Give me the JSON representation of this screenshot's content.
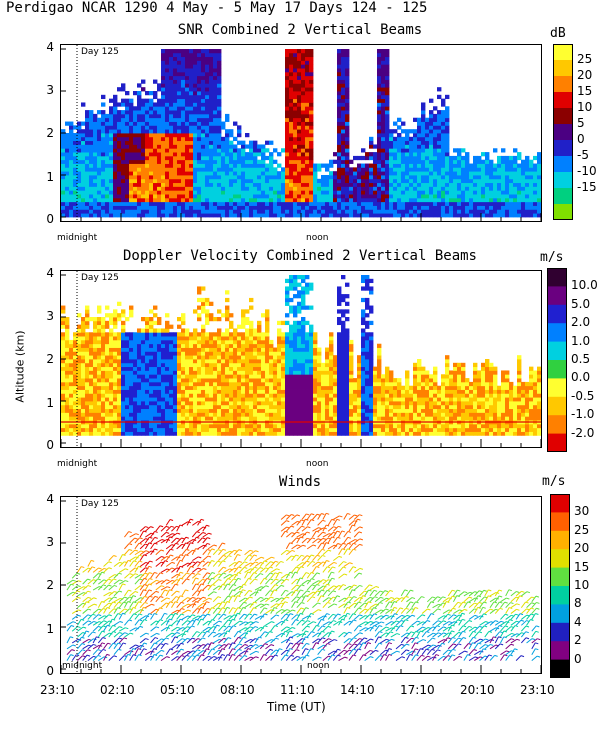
{
  "header": {
    "title": "Perdigao NCAR 1290   4 May -  5 May 17 Days 124 - 125"
  },
  "chart_data": [
    {
      "type": "heatmap",
      "title": "SNR Combined 2 Vertical Beams",
      "ylabel": "",
      "xlabel": "",
      "ylim": [
        0,
        4
      ],
      "y_ticks": [
        "0",
        "1",
        "2",
        "3",
        "4"
      ],
      "annotations": [
        "Day 125",
        "midnight",
        "noon"
      ],
      "colorbar": {
        "unit": "dB",
        "ticks": [
          "25",
          "20",
          "15",
          "10",
          "5",
          "0",
          "-5",
          "-10",
          "-15"
        ],
        "colors": [
          "#ffff30",
          "#ffc800",
          "#ff8000",
          "#e00000",
          "#8b0000",
          "#4b0082",
          "#2020c8",
          "#0080ff",
          "#00d0e0",
          "#00d080",
          "#80e000"
        ]
      }
    },
    {
      "type": "heatmap",
      "title": "Doppler Velocity Combined 2 Vertical Beams",
      "ylabel": "Altitude (km)",
      "xlabel": "",
      "ylim": [
        0,
        4
      ],
      "y_ticks": [
        "0",
        "1",
        "2",
        "3",
        "4"
      ],
      "annotations": [
        "Day 125",
        "midnight",
        "noon"
      ],
      "colorbar": {
        "unit": "m/s",
        "ticks": [
          "10.0",
          "5.0",
          "2.0",
          "1.0",
          "0.5",
          "0.0",
          "-0.5",
          "-1.0",
          "-2.0"
        ],
        "colors": [
          "#300030",
          "#6a0080",
          "#2020d0",
          "#0080ff",
          "#00d0e0",
          "#30d040",
          "#ffff30",
          "#ffc800",
          "#ff8000",
          "#e00000"
        ]
      }
    },
    {
      "type": "scatter",
      "title": "Winds",
      "ylabel": "",
      "xlabel": "Time (UT)",
      "ylim": [
        0,
        4
      ],
      "y_ticks": [
        "0",
        "1",
        "2",
        "3",
        "4"
      ],
      "x_ticks": [
        "23:10",
        "02:10",
        "05:10",
        "08:10",
        "11:10",
        "14:10",
        "17:10",
        "20:10",
        "23:10"
      ],
      "annotations": [
        "Day 125",
        "midnight",
        "noon"
      ],
      "colorbar": {
        "unit": "m/s",
        "ticks": [
          "30",
          "25",
          "20",
          "15",
          "10",
          "8",
          "4",
          "2",
          "0"
        ],
        "colors": [
          "#e00000",
          "#ff6000",
          "#ffb000",
          "#e0e000",
          "#60e040",
          "#00d0a0",
          "#00a0e0",
          "#2020c0",
          "#800080",
          "#000000"
        ]
      }
    }
  ]
}
